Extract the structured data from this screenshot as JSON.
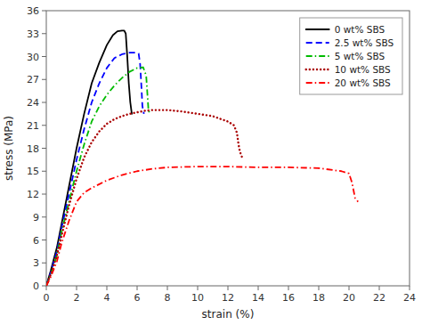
{
  "chart_data": {
    "type": "line",
    "xlabel": "strain (%)",
    "ylabel": "stress (MPa)",
    "xlim": [
      0,
      24
    ],
    "ylim": [
      0,
      36
    ],
    "xticks": [
      0,
      2,
      4,
      6,
      8,
      10,
      12,
      14,
      16,
      18,
      20,
      22,
      24
    ],
    "yticks": [
      0,
      3,
      6,
      9,
      12,
      15,
      18,
      21,
      24,
      27,
      30,
      33,
      36
    ],
    "grid": false,
    "legend": "upper-right",
    "series": [
      {
        "name": "0 wt% SBS",
        "color": "#000000",
        "line_style": "solid",
        "x": [
          0,
          0.3,
          0.7,
          1.0,
          1.5,
          2.0,
          2.5,
          3.0,
          3.5,
          4.0,
          4.4,
          4.7,
          5.0,
          5.15,
          5.25,
          5.35,
          5.45,
          5.55,
          5.65
        ],
        "values": [
          0,
          2.0,
          5.0,
          8.0,
          13.0,
          18.0,
          22.5,
          26.5,
          29.2,
          31.5,
          32.8,
          33.3,
          33.4,
          33.4,
          33.0,
          30.0,
          26.5,
          24.0,
          22.5
        ]
      },
      {
        "name": "2.5 wt% SBS",
        "color": "#0000ff",
        "line_style": "dashed",
        "x": [
          0,
          0.3,
          0.7,
          1.0,
          1.5,
          2.0,
          2.5,
          3.0,
          3.5,
          4.0,
          4.5,
          5.0,
          5.5,
          5.9,
          6.1,
          6.2,
          6.3,
          6.35,
          6.45
        ],
        "values": [
          0,
          1.8,
          4.5,
          7.5,
          12.0,
          16.5,
          20.5,
          24.0,
          26.5,
          28.5,
          29.8,
          30.3,
          30.5,
          30.5,
          30.4,
          29.0,
          25.5,
          23.5,
          22.5
        ]
      },
      {
        "name": "5 wt% SBS",
        "color": "#00bb00",
        "line_style": "dashdot",
        "x": [
          0,
          0.3,
          0.7,
          1.0,
          1.5,
          2.0,
          2.5,
          3.0,
          3.5,
          4.0,
          4.5,
          5.0,
          5.5,
          6.0,
          6.4,
          6.6,
          6.7,
          6.75,
          6.85
        ],
        "values": [
          0,
          1.5,
          4.0,
          7.0,
          11.0,
          15.0,
          18.5,
          21.5,
          23.5,
          25.0,
          26.2,
          27.2,
          28.0,
          28.5,
          28.6,
          27.5,
          24.5,
          23.0,
          22.5
        ]
      },
      {
        "name": "10 wt% SBS",
        "color": "#aa0000",
        "line_style": "dotted",
        "x": [
          0,
          0.3,
          0.7,
          1.0,
          1.5,
          2.0,
          2.5,
          3.0,
          3.5,
          4.0,
          4.5,
          5.0,
          5.5,
          6.0,
          6.5,
          7.0,
          8.0,
          9.0,
          10.0,
          11.0,
          12.0,
          12.4,
          12.6,
          12.7,
          12.8,
          13.0
        ],
        "values": [
          0,
          1.5,
          4.0,
          6.5,
          10.5,
          14.0,
          16.8,
          18.8,
          20.2,
          21.2,
          21.8,
          22.2,
          22.5,
          22.7,
          22.9,
          23.0,
          23.0,
          22.8,
          22.5,
          22.2,
          21.5,
          21.0,
          20.0,
          18.5,
          17.5,
          16.5
        ]
      },
      {
        "name": "20 wt% SBS",
        "color": "#ff0000",
        "line_style": "dashdot",
        "x": [
          0,
          0.3,
          0.7,
          1.0,
          1.5,
          2.0,
          2.5,
          3.0,
          3.5,
          4.0,
          5.0,
          6.0,
          7.0,
          8.0,
          10.0,
          12.0,
          14.0,
          16.0,
          18.0,
          19.5,
          20.0,
          20.2,
          20.4,
          20.6
        ],
        "values": [
          0,
          1.2,
          3.2,
          5.5,
          8.5,
          11.0,
          12.2,
          12.8,
          13.3,
          13.8,
          14.5,
          15.0,
          15.3,
          15.5,
          15.6,
          15.6,
          15.5,
          15.5,
          15.4,
          15.0,
          14.7,
          13.5,
          11.5,
          11.0
        ]
      }
    ]
  }
}
